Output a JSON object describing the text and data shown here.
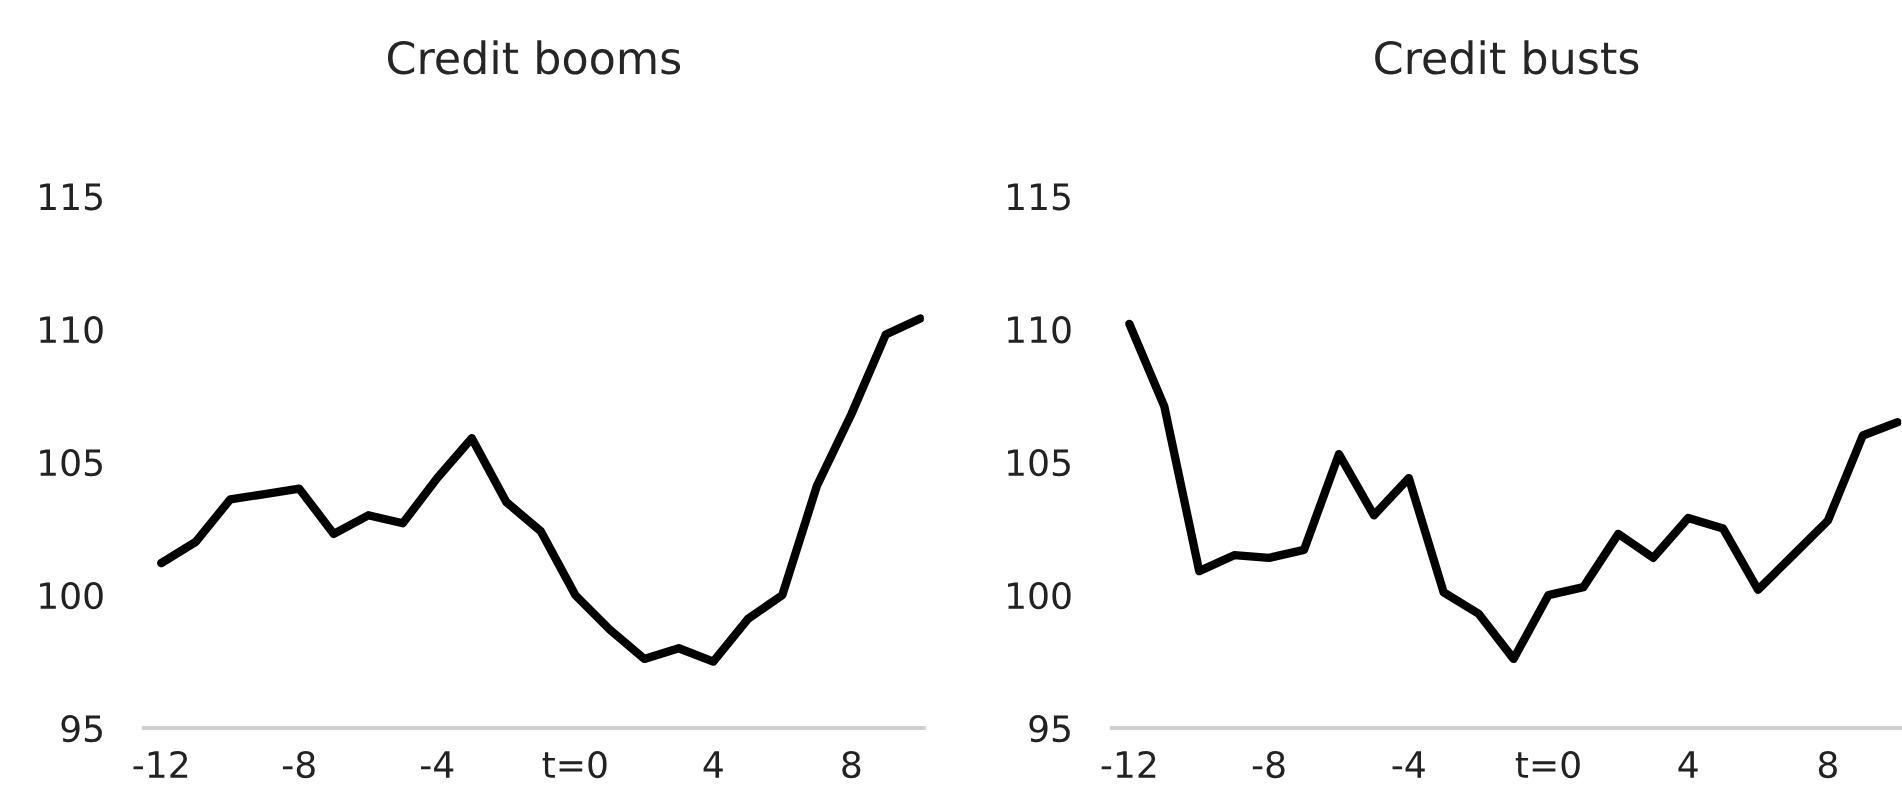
{
  "chart_data": [
    {
      "type": "line",
      "title": "Credit booms",
      "x": [
        -12,
        -11,
        -10,
        -9,
        -8,
        -7,
        -6,
        -5,
        -4,
        -3,
        -2,
        -1,
        0,
        1,
        2,
        3,
        4,
        5,
        6,
        7,
        8,
        9,
        10
      ],
      "series": [
        {
          "color": "#000000",
          "values": [
            101.2,
            102.0,
            103.6,
            103.8,
            104.0,
            102.3,
            103.0,
            102.7,
            104.4,
            105.9,
            103.5,
            102.4,
            100.0,
            98.7,
            97.6,
            98.0,
            97.5,
            99.1,
            100.0,
            104.1,
            106.8,
            109.8,
            110.4
          ]
        }
      ],
      "xlim": [
        -12.5,
        10.1
      ],
      "xticks": [
        -12,
        -8,
        -4,
        {
          "value": 0,
          "label": "t=0"
        },
        4,
        8
      ],
      "ylim": [
        95,
        115
      ],
      "yticks": [
        95,
        100,
        105,
        110,
        115
      ]
    },
    {
      "type": "line",
      "title": "Credit busts",
      "x": [
        -12,
        -11,
        -10,
        -9,
        -8,
        -7,
        -6,
        -5,
        -4,
        -3,
        -2,
        -1,
        0,
        1,
        2,
        3,
        4,
        5,
        6,
        7,
        8,
        9,
        10
      ],
      "series": [
        {
          "color": "#000000",
          "values": [
            110.2,
            107.1,
            100.9,
            101.5,
            101.4,
            101.7,
            105.3,
            103.0,
            104.4,
            100.1,
            99.3,
            97.6,
            100.0,
            100.3,
            102.3,
            101.4,
            102.9,
            102.5,
            100.2,
            101.5,
            102.8,
            106.0,
            106.5
          ]
        }
      ],
      "xlim": [
        -12.5,
        10.1
      ],
      "xticks": [
        -12,
        -8,
        -4,
        {
          "value": 0,
          "label": "t=0"
        },
        4,
        8
      ],
      "ylim": [
        95,
        115
      ],
      "yticks": [
        95,
        100,
        105,
        110,
        115
      ]
    }
  ]
}
